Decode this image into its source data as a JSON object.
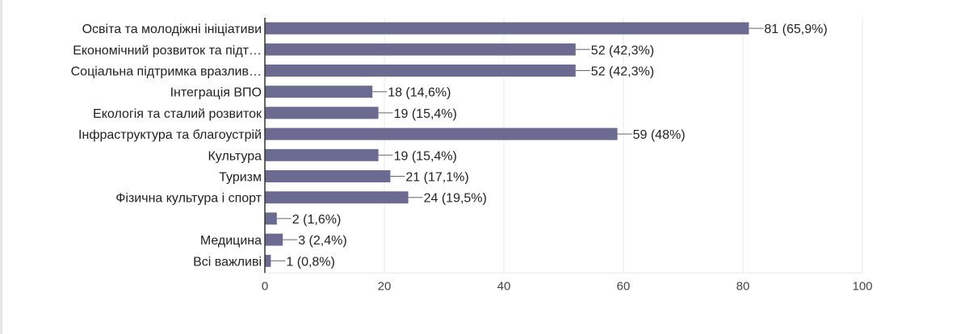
{
  "chart_data": {
    "type": "bar",
    "orientation": "horizontal",
    "categories": [
      "Освіта та молодіжні ініціативи",
      "Економічний розвиток та підт…",
      "Соціальна підтримка вразлив…",
      "Інтеграція ВПО",
      "Екологія та сталий розвиток",
      "Інфраструктура та благоустрій",
      "Культура",
      "Туризм",
      "Фізична культура і спорт",
      "",
      "Медицина",
      "Всі важливі"
    ],
    "values": [
      81,
      52,
      52,
      18,
      19,
      59,
      19,
      21,
      24,
      2,
      3,
      1
    ],
    "data_labels": [
      "81 (65,9%)",
      "52 (42,3%)",
      "52 (42,3%)",
      "18 (14,6%)",
      "19 (15,4%)",
      "59 (48%)",
      "19 (15,4%)",
      "21 (17,1%)",
      "24 (19,5%)",
      "2 (1,6%)",
      "3 (2,4%)",
      "1 (0,8%)"
    ],
    "xlim": [
      0,
      100
    ],
    "xticks": [
      "0",
      "20",
      "40",
      "60",
      "80",
      "100"
    ],
    "grid": true,
    "bar_color": "#6b6b92"
  }
}
